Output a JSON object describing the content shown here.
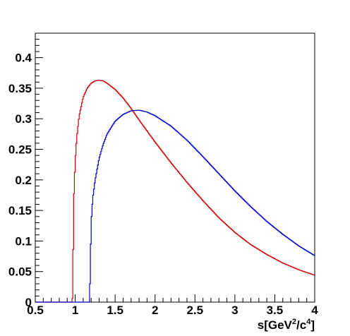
{
  "chart_data": {
    "type": "line",
    "title": "",
    "xlabel": "s[GeV²/c⁴]",
    "xlabel_parts": {
      "base": "s[GeV",
      "sup1": "2",
      "mid": "/c",
      "sup2": "4",
      "end": "]"
    },
    "ylabel": "",
    "xlim": [
      0.5,
      4.0
    ],
    "ylim": [
      0,
      0.44
    ],
    "x_ticks": [
      0.5,
      1,
      1.5,
      2,
      2.5,
      3,
      3.5,
      4
    ],
    "x_tick_labels": [
      "0.5",
      "1",
      "1.5",
      "2",
      "2.5",
      "3",
      "3.5",
      "4"
    ],
    "y_ticks": [
      0,
      0.05,
      0.1,
      0.15,
      0.2,
      0.25,
      0.3,
      0.35,
      0.4
    ],
    "y_tick_labels": [
      "0",
      "0.05",
      "0.1",
      "0.15",
      "0.2",
      "0.25",
      "0.3",
      "0.35",
      "0.4"
    ],
    "grid": false,
    "legend": "none",
    "style": "step-histogram",
    "series": [
      {
        "color": "#cc0000",
        "x": [
          0.5,
          0.96,
          0.97,
          0.98,
          1.0,
          1.02,
          1.05,
          1.1,
          1.15,
          1.2,
          1.25,
          1.3,
          1.35,
          1.4,
          1.5,
          1.6,
          1.7,
          1.8,
          1.9,
          2.0,
          2.2,
          2.4,
          2.6,
          2.8,
          3.0,
          3.2,
          3.4,
          3.6,
          3.8,
          4.0
        ],
        "y": [
          0,
          0,
          0.012,
          0.16,
          0.23,
          0.27,
          0.305,
          0.335,
          0.35,
          0.358,
          0.362,
          0.363,
          0.362,
          0.358,
          0.348,
          0.334,
          0.317,
          0.298,
          0.28,
          0.262,
          0.228,
          0.196,
          0.166,
          0.138,
          0.114,
          0.094,
          0.078,
          0.064,
          0.053,
          0.044
        ]
      },
      {
        "color": "#0000cc",
        "x": [
          0.5,
          1.18,
          1.19,
          1.2,
          1.22,
          1.25,
          1.3,
          1.35,
          1.4,
          1.5,
          1.6,
          1.7,
          1.8,
          1.9,
          2.0,
          2.2,
          2.4,
          2.6,
          2.8,
          3.0,
          3.2,
          3.4,
          3.6,
          3.8,
          4.0
        ],
        "y": [
          0,
          0,
          0.06,
          0.13,
          0.17,
          0.2,
          0.235,
          0.258,
          0.275,
          0.296,
          0.307,
          0.313,
          0.314,
          0.311,
          0.305,
          0.288,
          0.265,
          0.238,
          0.21,
          0.182,
          0.156,
          0.132,
          0.111,
          0.092,
          0.076
        ]
      }
    ]
  }
}
